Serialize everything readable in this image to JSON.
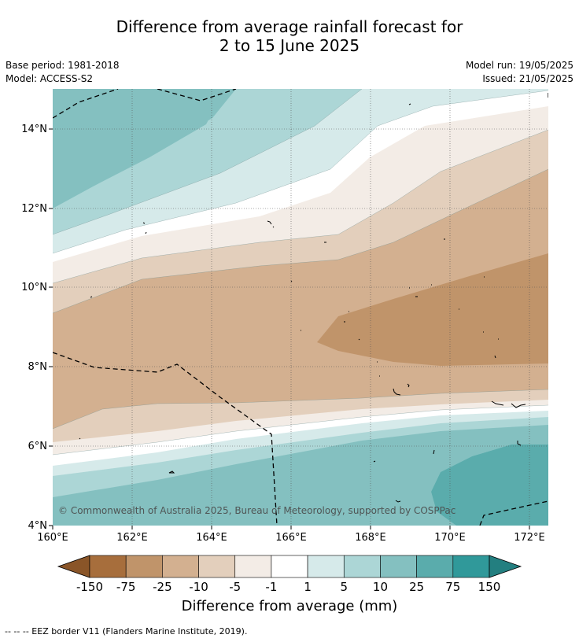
{
  "title_line1": "Difference from average rainfall forecast for",
  "title_line2": "2 to 15 June 2025",
  "base_period": "Base period: 1981-2018",
  "model": "Model: ACCESS-S2",
  "model_run": "Model run: 19/05/2025",
  "issued": "Issued: 21/05/2025",
  "copyright": "© Commonwealth of Australia 2025, Bureau of Meteorology, supported by COSPPac",
  "x_ticks": [
    "160°E",
    "162°E",
    "164°E",
    "166°E",
    "168°E",
    "170°E",
    "172°E"
  ],
  "y_ticks": [
    "14°N",
    "12°N",
    "10°N",
    "8°N",
    "6°N",
    "4°N"
  ],
  "colorbar": {
    "labels": [
      "-150",
      "-75",
      "-25",
      "-10",
      "-5",
      "-1",
      "1",
      "5",
      "10",
      "25",
      "75",
      "150"
    ],
    "colors": [
      "#a76e3c",
      "#c0946a",
      "#d3b090",
      "#e3cfbc",
      "#f3ece6",
      "#ffffff",
      "#d6eaea",
      "#acd6d6",
      "#84c0c0",
      "#5aacac",
      "#30999a",
      "#237f80"
    ],
    "label": "Difference from average (mm)"
  },
  "footnote": "--  --  -- EEZ border V11 (Flanders Marine Institute, 2019)."
}
